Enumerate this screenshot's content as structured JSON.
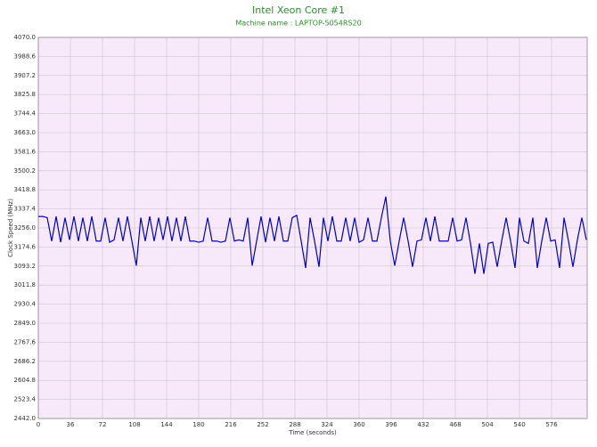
{
  "chart_data": {
    "type": "line",
    "title": "Intel Xeon Core #1",
    "subtitle": "Machine name : LAPTOP-5054RS20",
    "x_label": "Time (seconds)",
    "y_label": "Clock Speed (MHz)",
    "x": [
      0,
      5,
      10,
      15,
      20,
      25,
      30,
      35,
      40,
      45,
      50,
      55,
      60,
      65,
      70,
      75,
      80,
      85,
      90,
      95,
      100,
      105,
      110,
      115,
      120,
      125,
      130,
      135,
      140,
      145,
      150,
      155,
      160,
      165,
      170,
      175,
      180,
      185,
      190,
      195,
      200,
      205,
      210,
      215,
      220,
      225,
      230,
      235,
      240,
      245,
      250,
      255,
      260,
      265,
      270,
      275,
      280,
      285,
      290,
      295,
      300,
      305,
      310,
      315,
      320,
      325,
      330,
      335,
      340,
      345,
      350,
      355,
      360,
      365,
      370,
      375,
      380,
      385,
      390,
      395,
      400,
      405,
      410,
      415,
      420,
      425,
      430,
      435,
      440,
      445,
      450,
      455,
      460,
      465,
      470,
      475,
      480,
      485,
      490,
      495,
      500,
      505,
      510,
      515,
      520,
      525,
      530,
      535,
      540,
      545,
      550,
      555,
      560,
      565,
      570,
      575,
      580,
      585,
      590,
      595,
      600,
      605,
      610,
      615
    ],
    "series": [
      {
        "name": "Clock Speed",
        "color": "#0000cc",
        "values": [
          3305,
          3305,
          3300,
          3200,
          3305,
          3195,
          3300,
          3205,
          3305,
          3200,
          3300,
          3200,
          3305,
          3200,
          3200,
          3300,
          3195,
          3205,
          3300,
          3200,
          3305,
          3200,
          3095,
          3300,
          3200,
          3305,
          3200,
          3300,
          3205,
          3305,
          3200,
          3300,
          3200,
          3305,
          3200,
          3200,
          3195,
          3200,
          3300,
          3200,
          3200,
          3195,
          3200,
          3300,
          3200,
          3205,
          3200,
          3300,
          3095,
          3200,
          3305,
          3195,
          3300,
          3200,
          3305,
          3200,
          3200,
          3300,
          3310,
          3200,
          3085,
          3300,
          3200,
          3090,
          3300,
          3200,
          3305,
          3200,
          3200,
          3300,
          3200,
          3300,
          3195,
          3205,
          3300,
          3200,
          3200,
          3300,
          3390,
          3200,
          3095,
          3200,
          3300,
          3200,
          3090,
          3200,
          3205,
          3300,
          3200,
          3305,
          3200,
          3200,
          3200,
          3300,
          3200,
          3205,
          3300,
          3190,
          3060,
          3190,
          3060,
          3190,
          3195,
          3090,
          3200,
          3300,
          3200,
          3085,
          3300,
          3200,
          3190,
          3300,
          3085,
          3200,
          3300,
          3200,
          3205,
          3085,
          3300,
          3200,
          3090,
          3205,
          3300,
          3205
        ]
      }
    ],
    "xlim": [
      0,
      616
    ],
    "xticks": [
      0,
      36,
      72,
      108,
      144,
      180,
      216,
      252,
      288,
      324,
      360,
      396,
      432,
      468,
      504,
      540,
      576
    ],
    "ylim": [
      2442,
      4070
    ],
    "yticks": [
      {
        "value": 2442,
        "label": "2442.0"
      },
      2523.4,
      2604.8,
      2686.2,
      2767.6,
      {
        "value": 2849,
        "label": "2849.0"
      },
      2930.4,
      3011.8,
      3093.2,
      3174.6,
      {
        "value": 3256,
        "label": "3256.0"
      },
      3337.4,
      3418.8,
      3500.2,
      3581.6,
      {
        "value": 3663,
        "label": "3663.0"
      },
      3744.4,
      3825.8,
      3907.2,
      3988.6,
      {
        "value": 4070,
        "label": "4070.0"
      }
    ],
    "grid": true,
    "plot_background": "#f7e8fa"
  }
}
